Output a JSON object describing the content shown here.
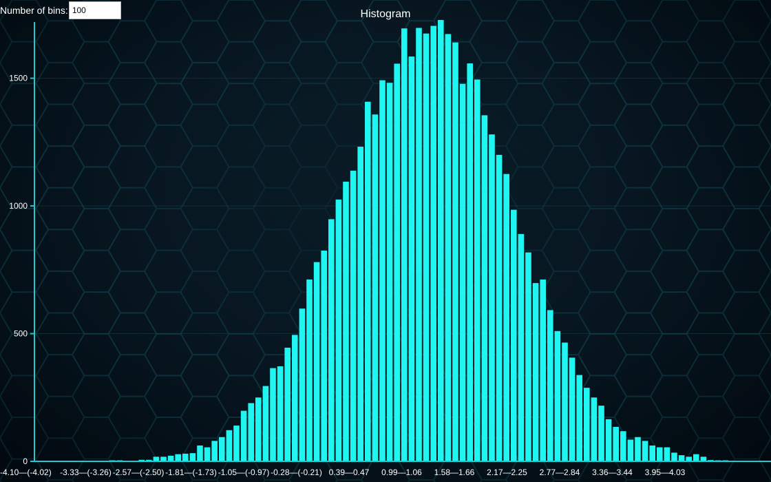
{
  "controls": {
    "bins_label": "Number of bins:",
    "bins_value": "100"
  },
  "colors": {
    "bar": "#1ff5f1",
    "axis": "#22c9cf",
    "background": "#050f16",
    "hex_grid": "#0f3a46"
  },
  "chart_data": {
    "type": "bar",
    "title": "Histogram",
    "xlabel": "",
    "ylabel": "",
    "ylim": [
      0,
      1720
    ],
    "y_ticks": [
      0,
      500,
      1000,
      1500
    ],
    "x_tick_labels": [
      "-4.10—(-4.02)",
      "-3.33—(-3.26)",
      "-2.57—(-2.50)",
      "-1.81—(-1.73)",
      "-1.05—(-0.97)",
      "-0.28—(-0.21)",
      "0.39—0.47",
      "0.99—1.06",
      "1.58—1.66",
      "2.17—2.25",
      "2.77—2.84",
      "3.36—3.44",
      "3.95—4.03"
    ],
    "bin_count": 100,
    "values": [
      1,
      0,
      1,
      0,
      0,
      0,
      2,
      2,
      0,
      0,
      4,
      4,
      2,
      2,
      6,
      6,
      18,
      18,
      22,
      28,
      30,
      32,
      62,
      55,
      80,
      95,
      122,
      140,
      198,
      228,
      250,
      295,
      365,
      372,
      445,
      495,
      598,
      712,
      780,
      825,
      948,
      1025,
      1095,
      1138,
      1232,
      1408,
      1358,
      1492,
      1482,
      1557,
      1695,
      1585,
      1697,
      1675,
      1705,
      1728,
      1673,
      1640,
      1478,
      1558,
      1495,
      1355,
      1280,
      1200,
      1125,
      985,
      890,
      818,
      698,
      712,
      592,
      510,
      465,
      406,
      338,
      288,
      250,
      218,
      165,
      135,
      118,
      85,
      95,
      80,
      62,
      55,
      55,
      34,
      24,
      18,
      28,
      18,
      5,
      4,
      4,
      2,
      2,
      1,
      2,
      0
    ]
  }
}
